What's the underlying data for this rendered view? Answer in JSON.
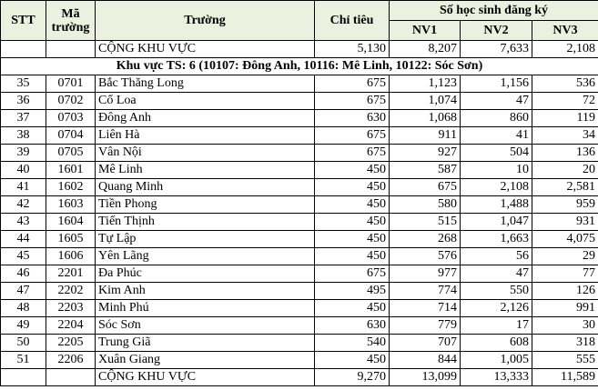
{
  "header": {
    "stt": "STT",
    "code": "Mã trường",
    "school": "Trường",
    "quota": "Chỉ tiêu",
    "group": "Số học sinh đăng ký",
    "choices": [
      "NV1",
      "NV2",
      "NV3"
    ]
  },
  "summary_top": {
    "label": "CỘNG KHU VỰC",
    "values": [
      "5,130",
      "8,207",
      "7,633",
      "2,108"
    ]
  },
  "section": "Khu vực TS: 6 (10107: Đông Anh, 10116: Mê Linh, 10122: Sóc Sơn)",
  "rows": [
    [
      "35",
      "0701",
      "Bắc Thăng Long",
      "675",
      "1,123",
      "1,156",
      "536"
    ],
    [
      "36",
      "0702",
      "Cổ Loa",
      "675",
      "1,074",
      "47",
      "72"
    ],
    [
      "37",
      "0703",
      "Đông Anh",
      "630",
      "1,068",
      "860",
      "119"
    ],
    [
      "38",
      "0704",
      "Liên Hà",
      "675",
      "911",
      "41",
      "34"
    ],
    [
      "39",
      "0705",
      "Vân Nội",
      "675",
      "927",
      "504",
      "136"
    ],
    [
      "40",
      "1601",
      "Mê Linh",
      "450",
      "587",
      "10",
      "20"
    ],
    [
      "41",
      "1602",
      "Quang Minh",
      "450",
      "675",
      "2,108",
      "2,581"
    ],
    [
      "42",
      "1603",
      "Tiền Phong",
      "450",
      "580",
      "1,488",
      "959"
    ],
    [
      "43",
      "1604",
      "Tiến Thịnh",
      "450",
      "515",
      "1,047",
      "931"
    ],
    [
      "44",
      "1605",
      "Tự Lập",
      "450",
      "268",
      "1,663",
      "4,075"
    ],
    [
      "45",
      "1606",
      "Yên Lãng",
      "450",
      "576",
      "56",
      "29"
    ],
    [
      "46",
      "2201",
      "Đa Phúc",
      "675",
      "977",
      "47",
      "77"
    ],
    [
      "47",
      "2202",
      "Kim Anh",
      "495",
      "774",
      "550",
      "126"
    ],
    [
      "48",
      "2203",
      "Minh Phú",
      "450",
      "714",
      "2,126",
      "991"
    ],
    [
      "49",
      "2204",
      "Sóc Sơn",
      "630",
      "779",
      "17",
      "30"
    ],
    [
      "50",
      "2205",
      "Trung Giã",
      "540",
      "707",
      "608",
      "318"
    ],
    [
      "51",
      "2206",
      "Xuân Giang",
      "450",
      "844",
      "1,005",
      "555"
    ]
  ],
  "summary_bottom": {
    "label": "CỘNG KHU VỰC",
    "values": [
      "9,270",
      "13,099",
      "13,333",
      "11,589"
    ]
  }
}
